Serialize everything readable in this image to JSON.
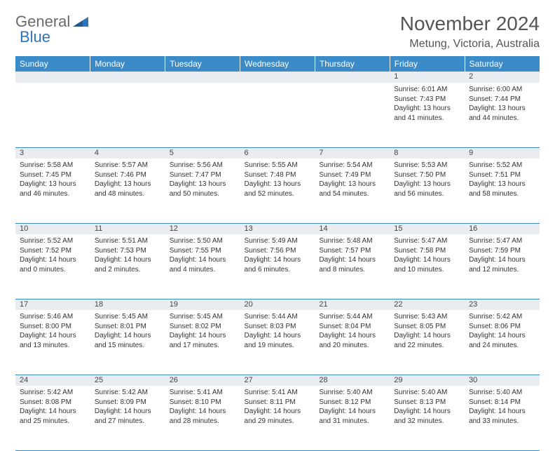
{
  "logo": {
    "general": "General",
    "blue": "Blue"
  },
  "title": "November 2024",
  "subtitle": "Metung, Victoria, Australia",
  "colors": {
    "header_bg": "#3b8bc9",
    "header_text": "#ffffff",
    "daynum_bg": "#e9edf1",
    "cell_border": "#3b8bc9",
    "title_color": "#555555",
    "logo_gray": "#6a6a6a",
    "logo_blue": "#2d74b8"
  },
  "weekdays": [
    "Sunday",
    "Monday",
    "Tuesday",
    "Wednesday",
    "Thursday",
    "Friday",
    "Saturday"
  ],
  "weeks": [
    [
      null,
      null,
      null,
      null,
      null,
      {
        "day": "1",
        "sunrise": "Sunrise: 6:01 AM",
        "sunset": "Sunset: 7:43 PM",
        "daylight": "Daylight: 13 hours and 41 minutes."
      },
      {
        "day": "2",
        "sunrise": "Sunrise: 6:00 AM",
        "sunset": "Sunset: 7:44 PM",
        "daylight": "Daylight: 13 hours and 44 minutes."
      }
    ],
    [
      {
        "day": "3",
        "sunrise": "Sunrise: 5:58 AM",
        "sunset": "Sunset: 7:45 PM",
        "daylight": "Daylight: 13 hours and 46 minutes."
      },
      {
        "day": "4",
        "sunrise": "Sunrise: 5:57 AM",
        "sunset": "Sunset: 7:46 PM",
        "daylight": "Daylight: 13 hours and 48 minutes."
      },
      {
        "day": "5",
        "sunrise": "Sunrise: 5:56 AM",
        "sunset": "Sunset: 7:47 PM",
        "daylight": "Daylight: 13 hours and 50 minutes."
      },
      {
        "day": "6",
        "sunrise": "Sunrise: 5:55 AM",
        "sunset": "Sunset: 7:48 PM",
        "daylight": "Daylight: 13 hours and 52 minutes."
      },
      {
        "day": "7",
        "sunrise": "Sunrise: 5:54 AM",
        "sunset": "Sunset: 7:49 PM",
        "daylight": "Daylight: 13 hours and 54 minutes."
      },
      {
        "day": "8",
        "sunrise": "Sunrise: 5:53 AM",
        "sunset": "Sunset: 7:50 PM",
        "daylight": "Daylight: 13 hours and 56 minutes."
      },
      {
        "day": "9",
        "sunrise": "Sunrise: 5:52 AM",
        "sunset": "Sunset: 7:51 PM",
        "daylight": "Daylight: 13 hours and 58 minutes."
      }
    ],
    [
      {
        "day": "10",
        "sunrise": "Sunrise: 5:52 AM",
        "sunset": "Sunset: 7:52 PM",
        "daylight": "Daylight: 14 hours and 0 minutes."
      },
      {
        "day": "11",
        "sunrise": "Sunrise: 5:51 AM",
        "sunset": "Sunset: 7:53 PM",
        "daylight": "Daylight: 14 hours and 2 minutes."
      },
      {
        "day": "12",
        "sunrise": "Sunrise: 5:50 AM",
        "sunset": "Sunset: 7:55 PM",
        "daylight": "Daylight: 14 hours and 4 minutes."
      },
      {
        "day": "13",
        "sunrise": "Sunrise: 5:49 AM",
        "sunset": "Sunset: 7:56 PM",
        "daylight": "Daylight: 14 hours and 6 minutes."
      },
      {
        "day": "14",
        "sunrise": "Sunrise: 5:48 AM",
        "sunset": "Sunset: 7:57 PM",
        "daylight": "Daylight: 14 hours and 8 minutes."
      },
      {
        "day": "15",
        "sunrise": "Sunrise: 5:47 AM",
        "sunset": "Sunset: 7:58 PM",
        "daylight": "Daylight: 14 hours and 10 minutes."
      },
      {
        "day": "16",
        "sunrise": "Sunrise: 5:47 AM",
        "sunset": "Sunset: 7:59 PM",
        "daylight": "Daylight: 14 hours and 12 minutes."
      }
    ],
    [
      {
        "day": "17",
        "sunrise": "Sunrise: 5:46 AM",
        "sunset": "Sunset: 8:00 PM",
        "daylight": "Daylight: 14 hours and 13 minutes."
      },
      {
        "day": "18",
        "sunrise": "Sunrise: 5:45 AM",
        "sunset": "Sunset: 8:01 PM",
        "daylight": "Daylight: 14 hours and 15 minutes."
      },
      {
        "day": "19",
        "sunrise": "Sunrise: 5:45 AM",
        "sunset": "Sunset: 8:02 PM",
        "daylight": "Daylight: 14 hours and 17 minutes."
      },
      {
        "day": "20",
        "sunrise": "Sunrise: 5:44 AM",
        "sunset": "Sunset: 8:03 PM",
        "daylight": "Daylight: 14 hours and 19 minutes."
      },
      {
        "day": "21",
        "sunrise": "Sunrise: 5:44 AM",
        "sunset": "Sunset: 8:04 PM",
        "daylight": "Daylight: 14 hours and 20 minutes."
      },
      {
        "day": "22",
        "sunrise": "Sunrise: 5:43 AM",
        "sunset": "Sunset: 8:05 PM",
        "daylight": "Daylight: 14 hours and 22 minutes."
      },
      {
        "day": "23",
        "sunrise": "Sunrise: 5:42 AM",
        "sunset": "Sunset: 8:06 PM",
        "daylight": "Daylight: 14 hours and 24 minutes."
      }
    ],
    [
      {
        "day": "24",
        "sunrise": "Sunrise: 5:42 AM",
        "sunset": "Sunset: 8:08 PM",
        "daylight": "Daylight: 14 hours and 25 minutes."
      },
      {
        "day": "25",
        "sunrise": "Sunrise: 5:42 AM",
        "sunset": "Sunset: 8:09 PM",
        "daylight": "Daylight: 14 hours and 27 minutes."
      },
      {
        "day": "26",
        "sunrise": "Sunrise: 5:41 AM",
        "sunset": "Sunset: 8:10 PM",
        "daylight": "Daylight: 14 hours and 28 minutes."
      },
      {
        "day": "27",
        "sunrise": "Sunrise: 5:41 AM",
        "sunset": "Sunset: 8:11 PM",
        "daylight": "Daylight: 14 hours and 29 minutes."
      },
      {
        "day": "28",
        "sunrise": "Sunrise: 5:40 AM",
        "sunset": "Sunset: 8:12 PM",
        "daylight": "Daylight: 14 hours and 31 minutes."
      },
      {
        "day": "29",
        "sunrise": "Sunrise: 5:40 AM",
        "sunset": "Sunset: 8:13 PM",
        "daylight": "Daylight: 14 hours and 32 minutes."
      },
      {
        "day": "30",
        "sunrise": "Sunrise: 5:40 AM",
        "sunset": "Sunset: 8:14 PM",
        "daylight": "Daylight: 14 hours and 33 minutes."
      }
    ]
  ]
}
